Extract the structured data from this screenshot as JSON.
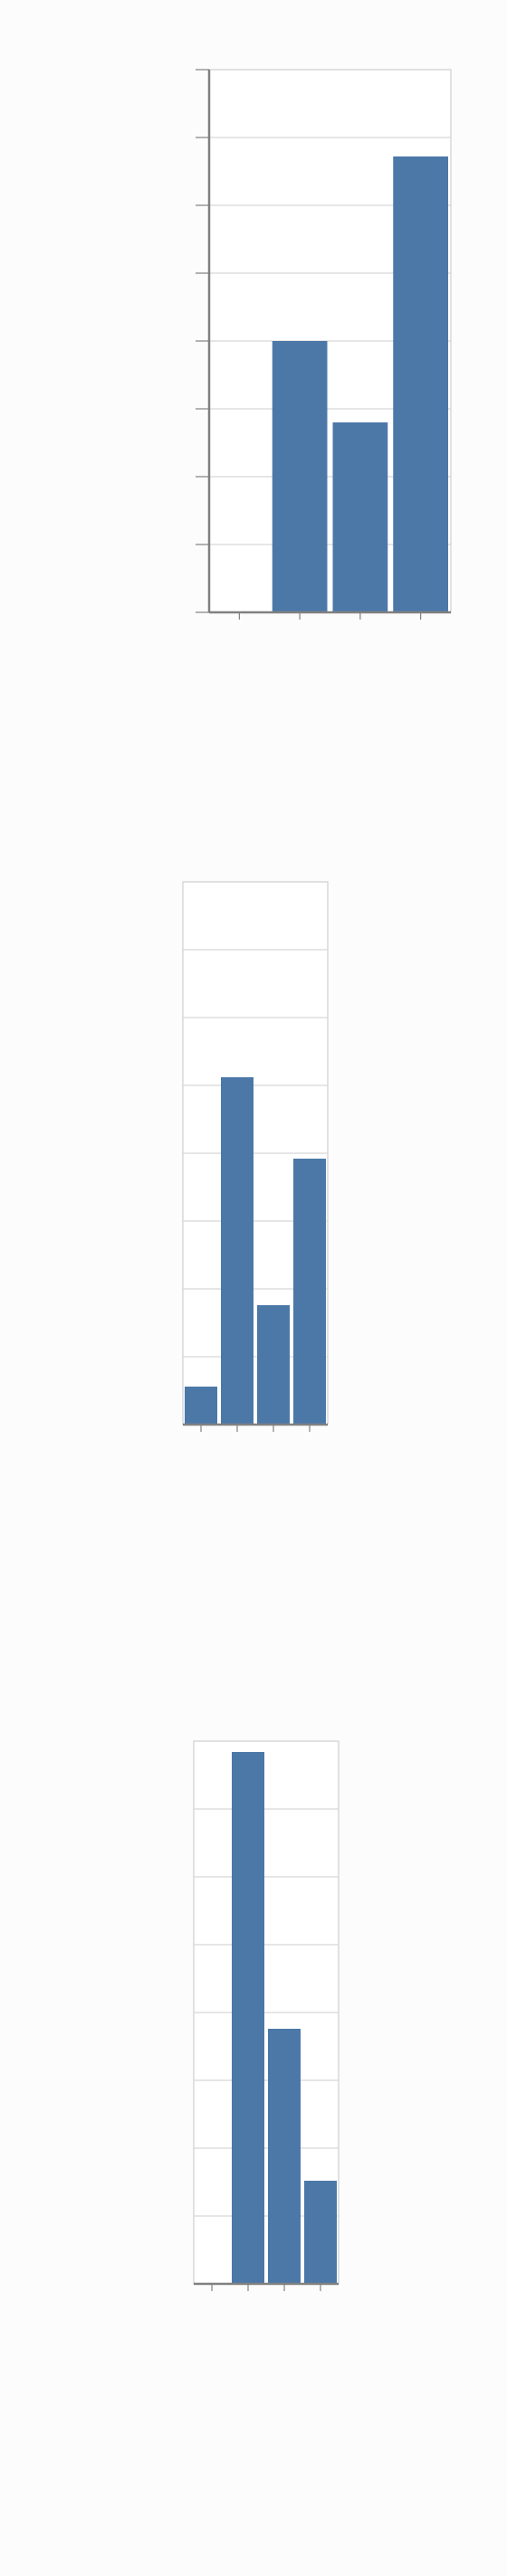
{
  "chart_data": [
    {
      "type": "bar",
      "categories": [
        "",
        "",
        "",
        ""
      ],
      "values": [
        0,
        50,
        35,
        84
      ],
      "ylim": [
        0,
        100
      ],
      "grid": true,
      "bar_color": "#4c78a8",
      "axis_color": "#808080",
      "grid_color": "#d6d6d6"
    },
    {
      "type": "bar",
      "categories": [
        "",
        "",
        "",
        ""
      ],
      "values": [
        7,
        64,
        22,
        49
      ],
      "ylim": [
        0,
        100
      ],
      "grid": true,
      "bar_color": "#4c78a8",
      "axis_color": "#808080",
      "grid_color": "#d6d6d6"
    },
    {
      "type": "bar",
      "categories": [
        "",
        "",
        "",
        ""
      ],
      "values": [
        0,
        98,
        47,
        19
      ],
      "ylim": [
        0,
        100
      ],
      "grid": true,
      "bar_color": "#4c78a8",
      "axis_color": "#808080",
      "grid_color": "#d6d6d6"
    }
  ]
}
